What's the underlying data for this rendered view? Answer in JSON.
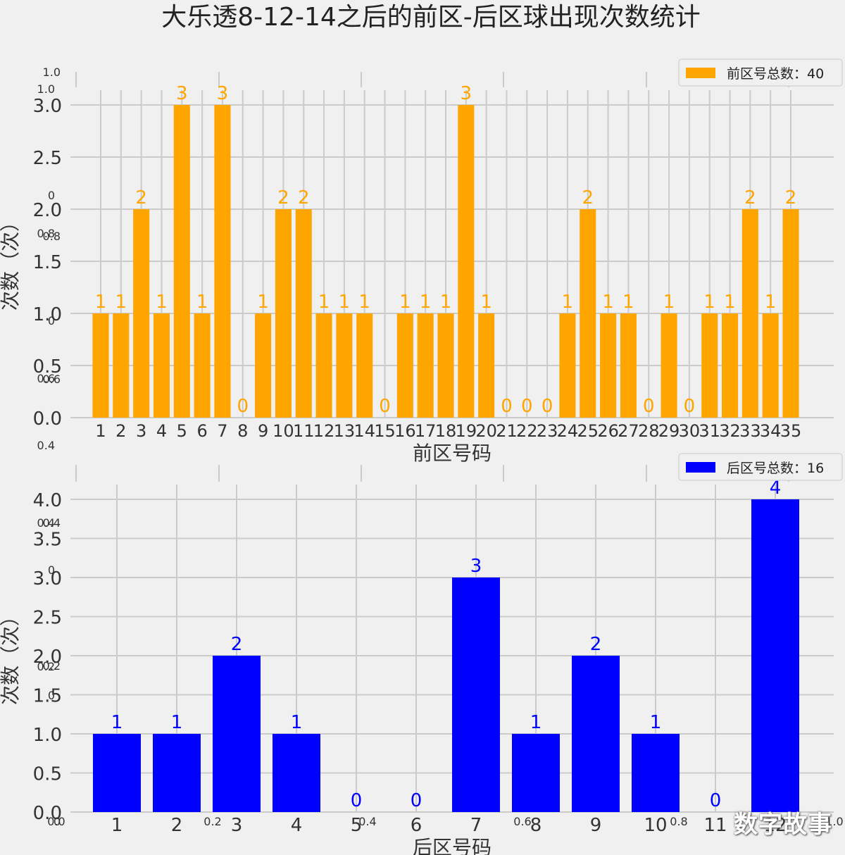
{
  "title": "大乐透8-12-14之后的前区-后区球出现次数统计",
  "watermark": "数字故事",
  "colors": {
    "front": "#ffa500",
    "back": "#0000ff",
    "background": "#f0f0f0",
    "grid": "#cbcbcb"
  },
  "chart_data": [
    {
      "type": "bar",
      "name": "front",
      "categories": [
        "1",
        "2",
        "3",
        "4",
        "5",
        "6",
        "7",
        "8",
        "9",
        "10",
        "11",
        "12",
        "13",
        "14",
        "15",
        "16",
        "17",
        "18",
        "19",
        "20",
        "21",
        "22",
        "23",
        "24",
        "25",
        "26",
        "27",
        "28",
        "29",
        "30",
        "31",
        "32",
        "33",
        "34",
        "35"
      ],
      "values": [
        1,
        1,
        2,
        1,
        3,
        1,
        3,
        0,
        1,
        2,
        2,
        1,
        1,
        1,
        0,
        1,
        1,
        1,
        3,
        1,
        0,
        0,
        0,
        1,
        2,
        1,
        1,
        0,
        1,
        0,
        1,
        1,
        2,
        1,
        2
      ],
      "xlabel": "前区号码",
      "ylabel": "次数（次）",
      "ylim": [
        0,
        3
      ],
      "yticks": [
        "0.0",
        "0.5",
        "1.0",
        "1.5",
        "2.0",
        "2.5",
        "3.0"
      ],
      "legend": "前区号总数：40",
      "legend_position": "top-right",
      "grid": true,
      "color": "#ffa500"
    },
    {
      "type": "bar",
      "name": "back",
      "categories": [
        "1",
        "2",
        "3",
        "4",
        "5",
        "6",
        "7",
        "8",
        "9",
        "10",
        "11",
        "12"
      ],
      "values": [
        1,
        1,
        2,
        1,
        0,
        0,
        3,
        1,
        2,
        1,
        0,
        4
      ],
      "xlabel": "后区号码",
      "ylabel": "次数（次）",
      "ylim": [
        0,
        4
      ],
      "yticks": [
        "0.0",
        "0.5",
        "1.0",
        "1.5",
        "2.0",
        "2.5",
        "3.0",
        "3.5",
        "4.0"
      ],
      "legend": "后区号总数：16",
      "legend_position": "top-right",
      "grid": true,
      "color": "#0000ff"
    }
  ],
  "background_axes": {
    "yticks": [
      "0",
      "0.2",
      "0.4",
      "0.6",
      "0.8",
      "1.0"
    ],
    "xticks": [
      "0.0",
      "0.2",
      "0.4",
      "0.6",
      "0.8",
      "1.0"
    ]
  }
}
